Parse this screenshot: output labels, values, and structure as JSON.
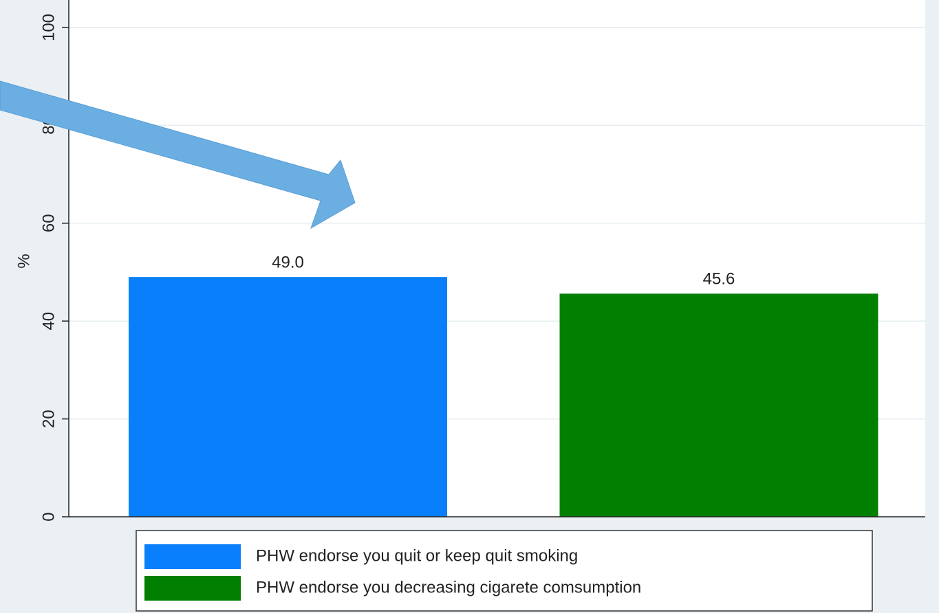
{
  "chart_data": {
    "type": "bar",
    "y_label": "%",
    "series": [
      {
        "name": "PHW endorse you quit or keep quit smoking",
        "color": "#0a7ffb",
        "values": [
          49.0
        ],
        "value_labels": [
          "49.0"
        ]
      },
      {
        "name": "PHW endorse you decreasing cigarete comsumption",
        "color": "#007f00",
        "values": [
          45.6
        ],
        "value_labels": [
          "45.6"
        ]
      }
    ],
    "ylim": [
      0,
      100
    ],
    "yticks": [
      0,
      20,
      40,
      60,
      80,
      100
    ],
    "grid": true
  }
}
